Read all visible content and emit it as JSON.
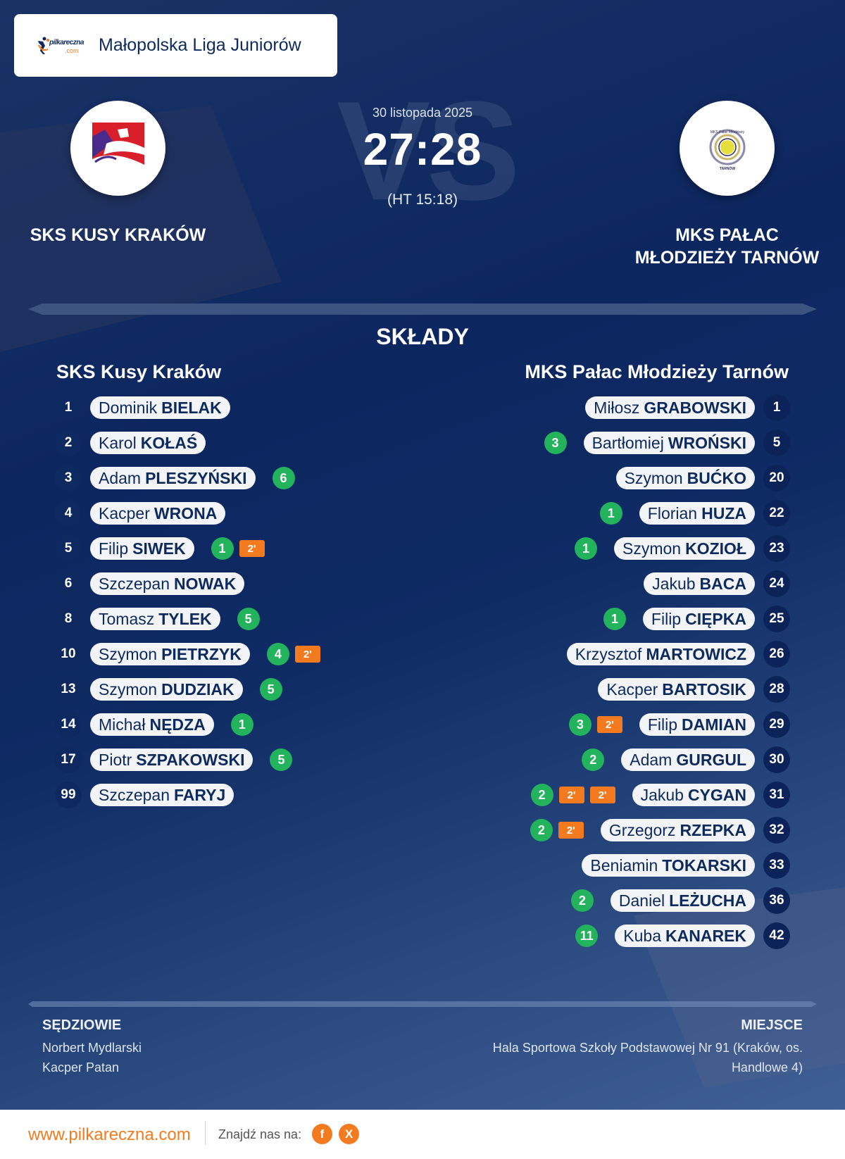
{
  "header": {
    "brand_logo_text": "pilkareczna",
    "brand_logo_suffix": ".com",
    "league_name": "Małopolska Liga Juniorów"
  },
  "match": {
    "date": "30 listopada 2025",
    "score": "27:28",
    "halftime": "(HT 15:18)",
    "watermark": "VS",
    "home_team": "SKS KUSY KRAKÓW",
    "away_team_line1": "MKS PAŁAC",
    "away_team_line2": "MŁODZIEŻY TARNÓW"
  },
  "lineups": {
    "title": "SKŁADY",
    "home": {
      "name": "SKS Kusy Kraków",
      "players": [
        {
          "number": "1",
          "first": "Dominik",
          "last": "BIELAK",
          "goals": "",
          "penalties": []
        },
        {
          "number": "2",
          "first": "Karol",
          "last": "KOŁAŚ",
          "goals": "",
          "penalties": []
        },
        {
          "number": "3",
          "first": "Adam",
          "last": "PLESZYŃSKI",
          "goals": "6",
          "penalties": []
        },
        {
          "number": "4",
          "first": "Kacper",
          "last": "WRONA",
          "goals": "",
          "penalties": []
        },
        {
          "number": "5",
          "first": "Filip",
          "last": "SIWEK",
          "goals": "1",
          "penalties": [
            "2'"
          ]
        },
        {
          "number": "6",
          "first": "Szczepan",
          "last": "NOWAK",
          "goals": "",
          "penalties": []
        },
        {
          "number": "8",
          "first": "Tomasz",
          "last": "TYLEK",
          "goals": "5",
          "penalties": []
        },
        {
          "number": "10",
          "first": "Szymon",
          "last": "PIETRZYK",
          "goals": "4",
          "penalties": [
            "2'"
          ]
        },
        {
          "number": "13",
          "first": "Szymon",
          "last": "DUDZIAK",
          "goals": "5",
          "penalties": []
        },
        {
          "number": "14",
          "first": "Michał",
          "last": "NĘDZA",
          "goals": "1",
          "penalties": []
        },
        {
          "number": "17",
          "first": "Piotr",
          "last": "SZPAKOWSKI",
          "goals": "5",
          "penalties": []
        },
        {
          "number": "99",
          "first": "Szczepan",
          "last": "FARYJ",
          "goals": "",
          "penalties": []
        }
      ]
    },
    "away": {
      "name": "MKS Pałac Młodzieży Tarnów",
      "players": [
        {
          "number": "1",
          "first": "Miłosz",
          "last": "GRABOWSKI",
          "goals": "",
          "penalties": []
        },
        {
          "number": "5",
          "first": "Bartłomiej",
          "last": "WROŃSKI",
          "goals": "3",
          "penalties": []
        },
        {
          "number": "20",
          "first": "Szymon",
          "last": "BUĆKO",
          "goals": "",
          "penalties": []
        },
        {
          "number": "22",
          "first": "Florian",
          "last": "HUZA",
          "goals": "1",
          "penalties": []
        },
        {
          "number": "23",
          "first": "Szymon",
          "last": "KOZIOŁ",
          "goals": "1",
          "penalties": []
        },
        {
          "number": "24",
          "first": "Jakub",
          "last": "BACA",
          "goals": "",
          "penalties": []
        },
        {
          "number": "25",
          "first": "Filip",
          "last": "CIĘPKA",
          "goals": "1",
          "penalties": []
        },
        {
          "number": "26",
          "first": "Krzysztof",
          "last": "MARTOWICZ",
          "goals": "",
          "penalties": []
        },
        {
          "number": "28",
          "first": "Kacper",
          "last": "BARTOSIK",
          "goals": "",
          "penalties": []
        },
        {
          "number": "29",
          "first": "Filip",
          "last": "DAMIAN",
          "goals": "3",
          "penalties": [
            "2'"
          ]
        },
        {
          "number": "30",
          "first": "Adam",
          "last": "GURGUL",
          "goals": "2",
          "penalties": []
        },
        {
          "number": "31",
          "first": "Jakub",
          "last": "CYGAN",
          "goals": "2",
          "penalties": [
            "2'",
            "2'"
          ]
        },
        {
          "number": "32",
          "first": "Grzegorz",
          "last": "RZEPKA",
          "goals": "2",
          "penalties": [
            "2'"
          ]
        },
        {
          "number": "33",
          "first": "Beniamin",
          "last": "TOKARSKI",
          "goals": "",
          "penalties": []
        },
        {
          "number": "36",
          "first": "Daniel",
          "last": "LEŻUCHA",
          "goals": "2",
          "penalties": []
        },
        {
          "number": "42",
          "first": "Kuba",
          "last": "KANAREK",
          "goals": "11",
          "penalties": []
        }
      ]
    }
  },
  "officials": {
    "title": "SĘDZIOWIE",
    "names": [
      "Norbert Mydlarski",
      "Kacper Patan"
    ]
  },
  "venue": {
    "title": "MIEJSCE",
    "text": "Hala Sportowa Szkoły Podstawowej Nr 91 (Kraków, os. Handlowe 4)"
  },
  "footer": {
    "url": "www.pilkareczna.com",
    "find_us": "Znajdź nas na:",
    "social": [
      {
        "name": "facebook-icon",
        "glyph": "f"
      },
      {
        "name": "x-icon",
        "glyph": "X"
      }
    ]
  },
  "colors": {
    "navy": "#0c2660",
    "text_navy": "#0d2a5e",
    "goals_green": "#22b35c",
    "penalty_orange": "#f47a1f",
    "pill_bg": "#f2f4f8"
  }
}
